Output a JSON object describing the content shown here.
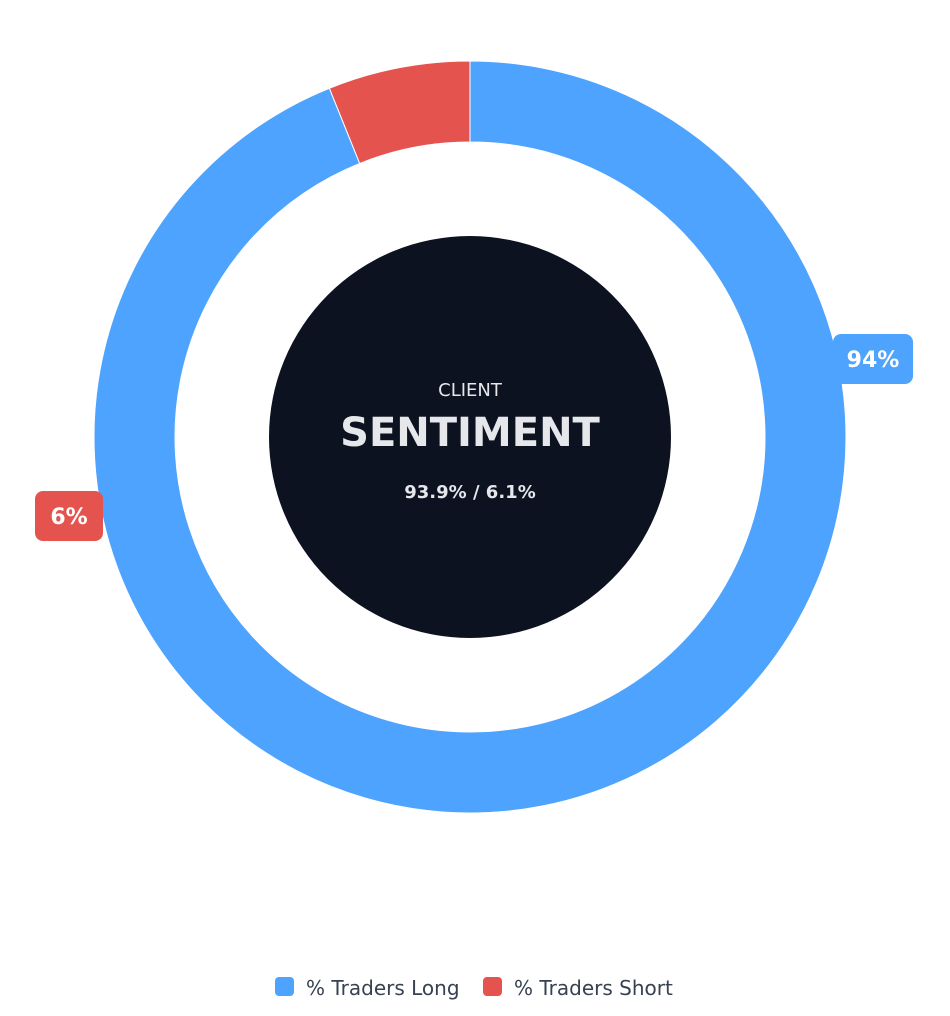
{
  "chart_data": {
    "type": "pie",
    "variant": "donut",
    "start_angle_deg": 270,
    "direction": "clockwise",
    "series": [
      {
        "name": "% Traders Long",
        "value": 93.9,
        "label": "94%",
        "color": "#4da3fd"
      },
      {
        "name": "% Traders Short",
        "value": 6.1,
        "label": "6%",
        "color": "#e5534f"
      }
    ],
    "center": {
      "subtitle": "CLIENT",
      "title": "SENTIMENT",
      "values_text": "93.9% / 6.1%",
      "background_color": "#0d1220"
    },
    "legend": {
      "position": "bottom"
    }
  }
}
